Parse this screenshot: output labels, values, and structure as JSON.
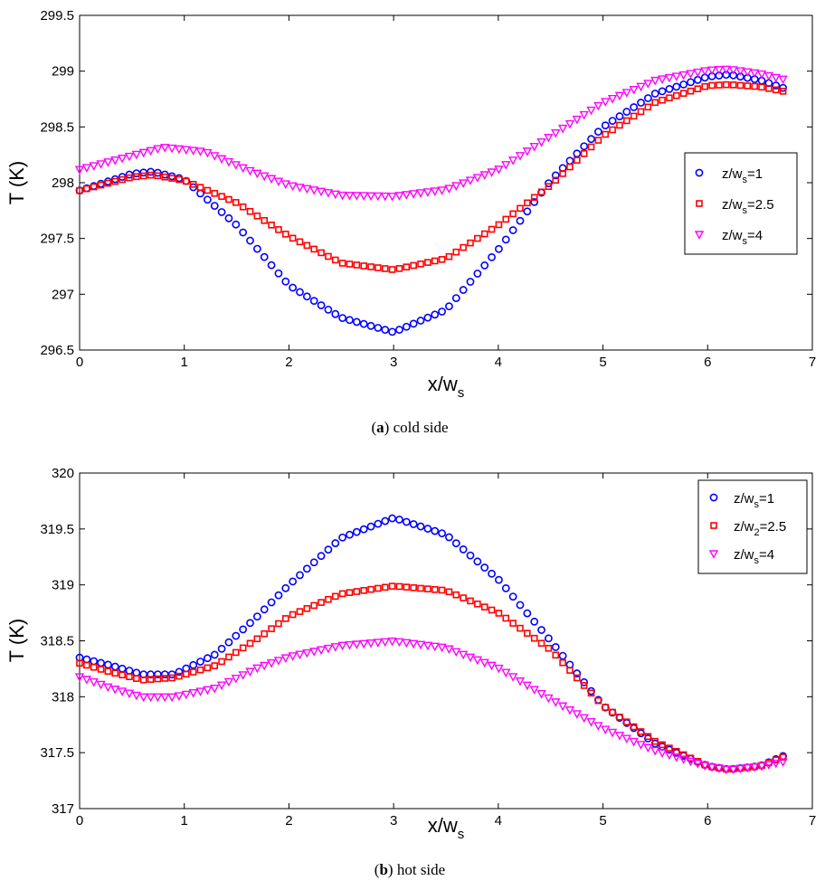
{
  "chart_data": [
    {
      "type": "scatter",
      "caption": {
        "open": "(",
        "letter": "a",
        "close": ")",
        "text": " cold side"
      },
      "xlabel": {
        "main": "x/w",
        "sub": "s"
      },
      "ylabel": "T (K)",
      "xlim": [
        0,
        7
      ],
      "ylim": [
        296.5,
        299.5
      ],
      "xticks": [
        "0",
        "1",
        "2",
        "3",
        "4",
        "5",
        "6",
        "7"
      ],
      "yticks": [
        "296.5",
        "297",
        "297.5",
        "298",
        "298.5",
        "299",
        "299.5"
      ],
      "grid": false,
      "legend_position": "right-middle",
      "series": [
        {
          "legend": {
            "pre": "z/w",
            "sub": "s",
            "post": "=1"
          },
          "marker": "circle",
          "color": "#0000ff",
          "x": [
            0,
            0.5,
            0.7,
            1,
            1.5,
            2,
            2.5,
            3,
            3.5,
            4,
            4.5,
            5,
            5.5,
            6,
            6.2,
            6.5,
            6.72
          ],
          "y": [
            297.93,
            298.08,
            298.1,
            298.03,
            297.62,
            297.08,
            296.79,
            296.66,
            296.86,
            297.4,
            298.02,
            298.5,
            298.8,
            298.95,
            298.97,
            298.92,
            298.85
          ]
        },
        {
          "legend": {
            "pre": "z/w",
            "sub": "s",
            "post": "=2.5"
          },
          "marker": "square",
          "color": "#ff0000",
          "x": [
            0,
            0.5,
            0.7,
            1,
            1.5,
            2,
            2.5,
            3,
            3.5,
            4,
            4.5,
            5,
            5.5,
            6,
            6.2,
            6.5,
            6.72
          ],
          "y": [
            297.93,
            298.05,
            298.07,
            298.02,
            297.82,
            297.52,
            297.28,
            297.22,
            297.32,
            297.62,
            297.98,
            298.42,
            298.72,
            298.87,
            298.88,
            298.86,
            298.82
          ]
        },
        {
          "legend": {
            "pre": "z/w",
            "sub": "s",
            "post": "=4"
          },
          "marker": "triangle-down",
          "color": "#ff00ff",
          "x": [
            0,
            0.4,
            0.8,
            1.2,
            1.6,
            2,
            2.5,
            3,
            3.5,
            4,
            4.5,
            5,
            5.5,
            6,
            6.2,
            6.5,
            6.72
          ],
          "y": [
            298.12,
            298.22,
            298.32,
            298.28,
            298.12,
            297.98,
            297.89,
            297.88,
            297.94,
            298.12,
            298.42,
            298.72,
            298.92,
            299.01,
            299.02,
            298.98,
            298.93
          ]
        }
      ]
    },
    {
      "type": "scatter",
      "caption": {
        "open": "(",
        "letter": "b",
        "close": ")",
        "text": " hot side"
      },
      "xlabel": {
        "main": "x/w",
        "sub": "s"
      },
      "ylabel": "T (K)",
      "xlim": [
        0,
        7
      ],
      "ylim": [
        317,
        320
      ],
      "xticks": [
        "0",
        "1",
        "2",
        "3",
        "4",
        "5",
        "6",
        "7"
      ],
      "yticks": [
        "317",
        "317.5",
        "318",
        "318.5",
        "319",
        "319.5",
        "320"
      ],
      "grid": false,
      "legend_position": "top-right",
      "series": [
        {
          "legend": {
            "pre": "z/w",
            "sub": "s",
            "post": "=1"
          },
          "marker": "circle",
          "color": "#0000ff",
          "x": [
            0,
            0.3,
            0.6,
            0.9,
            1.3,
            1.7,
            2,
            2.5,
            3,
            3.5,
            4,
            4.5,
            5,
            5.5,
            6,
            6.2,
            6.5,
            6.72
          ],
          "y": [
            318.35,
            318.28,
            318.2,
            318.2,
            318.38,
            318.72,
            319.0,
            319.42,
            319.6,
            319.45,
            319.05,
            318.5,
            317.92,
            317.58,
            317.38,
            317.35,
            317.38,
            317.47
          ]
        },
        {
          "legend": {
            "pre": "z/w",
            "sub": "2",
            "post": "=2.5"
          },
          "marker": "square",
          "color": "#ff0000",
          "x": [
            0,
            0.3,
            0.6,
            0.9,
            1.3,
            1.7,
            2,
            2.5,
            3,
            3.5,
            4,
            4.5,
            5,
            5.5,
            6,
            6.2,
            6.5,
            6.72
          ],
          "y": [
            318.3,
            318.22,
            318.15,
            318.17,
            318.28,
            318.52,
            318.72,
            318.92,
            318.99,
            318.95,
            318.75,
            318.42,
            317.92,
            317.6,
            317.38,
            317.35,
            317.38,
            317.46
          ]
        },
        {
          "legend": {
            "pre": "z/w",
            "sub": "s",
            "post": "=4"
          },
          "marker": "triangle-down",
          "color": "#ff00ff",
          "x": [
            0,
            0.3,
            0.6,
            0.9,
            1.3,
            1.7,
            2,
            2.5,
            3,
            3.5,
            4,
            4.5,
            5,
            5.5,
            6,
            6.2,
            6.5,
            6.72
          ],
          "y": [
            318.18,
            318.08,
            318.0,
            318.0,
            318.08,
            318.26,
            318.36,
            318.46,
            318.5,
            318.44,
            318.26,
            317.98,
            317.72,
            317.52,
            317.38,
            317.35,
            317.38,
            317.42
          ]
        }
      ]
    }
  ]
}
